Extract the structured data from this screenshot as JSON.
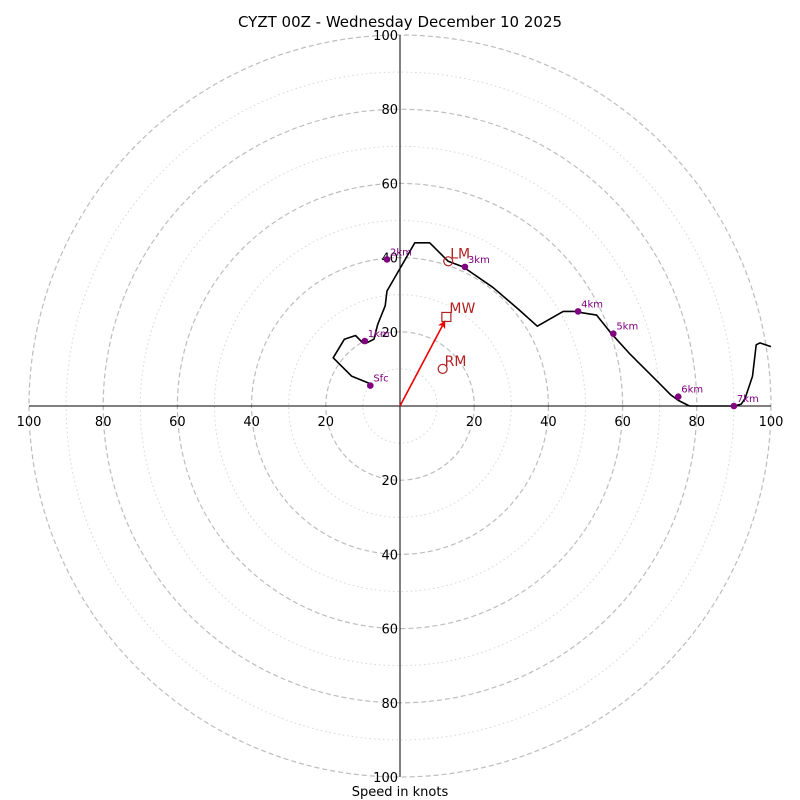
{
  "chart_data": {
    "type": "scatter",
    "subtype": "hodograph",
    "title": "CYZT 00Z - Wednesday December 10 2025",
    "xlabel": "Speed in knots",
    "units": "knots",
    "axis_range": [
      -100,
      100
    ],
    "ring_major": [
      20,
      40,
      60,
      80,
      100
    ],
    "ring_minor": [
      10,
      30,
      50,
      70,
      90
    ],
    "tick_labels": {
      "top": [
        {
          "v": 20,
          "label": "20"
        },
        {
          "v": 40,
          "label": "40"
        },
        {
          "v": 60,
          "label": "60"
        },
        {
          "v": 80,
          "label": "80"
        },
        {
          "v": 100,
          "label": "100"
        }
      ],
      "bottom": [
        {
          "v": 20,
          "label": "20"
        },
        {
          "v": 40,
          "label": "40"
        },
        {
          "v": 60,
          "label": "60"
        },
        {
          "v": 80,
          "label": "80"
        },
        {
          "v": 100,
          "label": "100"
        }
      ],
      "left": [
        {
          "v": 20,
          "label": "20"
        },
        {
          "v": 40,
          "label": "40"
        },
        {
          "v": 60,
          "label": "60"
        },
        {
          "v": 80,
          "label": "80"
        },
        {
          "v": 100,
          "label": "100"
        }
      ],
      "right": [
        {
          "v": 20,
          "label": "20"
        },
        {
          "v": 40,
          "label": "40"
        },
        {
          "v": 60,
          "label": "60"
        },
        {
          "v": 80,
          "label": "80"
        },
        {
          "v": 100,
          "label": "100"
        }
      ]
    },
    "trace_u": [
      -8,
      -13,
      -18,
      -15,
      -12,
      -10,
      -9,
      -7,
      -6,
      -4,
      -3.5,
      4,
      8,
      13,
      17,
      25,
      32,
      37,
      44,
      47,
      50,
      53,
      57,
      62,
      66,
      70,
      73,
      75,
      78,
      85,
      90,
      92,
      93,
      95,
      96,
      97,
      100
    ],
    "trace_v": [
      6,
      8,
      13,
      18,
      19,
      17,
      17,
      18,
      22,
      27,
      31,
      44,
      44,
      39,
      37.5,
      32,
      26,
      21.5,
      25.5,
      25.5,
      25,
      24.5,
      19.5,
      14,
      10,
      6,
      3,
      1.5,
      0,
      0,
      0,
      0.5,
      2,
      8,
      16.5,
      17,
      16
    ],
    "height_points": [
      {
        "u": -8,
        "v": 5.5,
        "label": "Sfc"
      },
      {
        "u": -9.5,
        "v": 17.5,
        "label": "1km"
      },
      {
        "u": -3.5,
        "v": 39.5,
        "label": "2km"
      },
      {
        "u": 17.5,
        "v": 37.5,
        "label": "3km"
      },
      {
        "u": 48,
        "v": 25.5,
        "label": "4km"
      },
      {
        "u": 57.5,
        "v": 19.5,
        "label": "5km"
      },
      {
        "u": 75,
        "v": 2.5,
        "label": "6km"
      },
      {
        "u": 90,
        "v": 0,
        "label": "7km"
      }
    ],
    "storm_motion": {
      "mean_wind": {
        "u": 12.5,
        "v": 24,
        "label": "MW"
      },
      "left_mover": {
        "u": 13,
        "v": 39,
        "label": "LM"
      },
      "right_mover": {
        "u": 11.5,
        "v": 10,
        "label": "RM"
      }
    },
    "colors": {
      "trace": "#000000",
      "height_points": "#800080",
      "storm_motion": "#b22222",
      "arrow": "#ee0000",
      "rings": "#bdbdbd",
      "axes": "#000000"
    }
  }
}
